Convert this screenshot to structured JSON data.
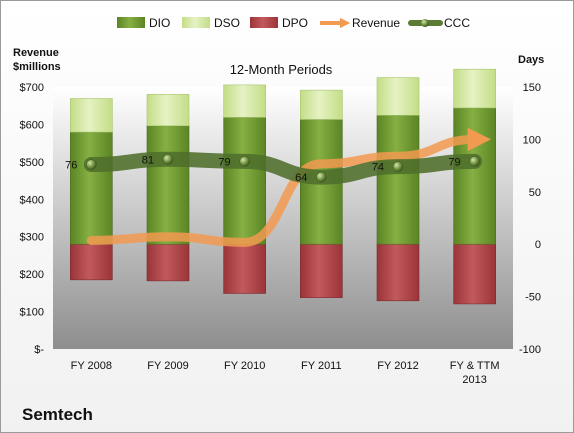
{
  "company": "Semtech",
  "chart_data": {
    "type": "bar",
    "title": "12-Month Periods",
    "left_axis_title_line1": "Revenue",
    "left_axis_title_line2": "$millions",
    "right_axis_title": "Days",
    "categories": [
      [
        "FY 2008"
      ],
      [
        "FY 2009"
      ],
      [
        "FY 2010"
      ],
      [
        "FY 2011"
      ],
      [
        "FY 2012"
      ],
      [
        "FY & TTM",
        "2013"
      ]
    ],
    "left_ticks": [
      "$-",
      "$100",
      "$200",
      "$300",
      "$400",
      "$500",
      "$600",
      "$700"
    ],
    "left_ylim": [
      0,
      700
    ],
    "right_ticks": [
      "-100",
      "-50",
      "0",
      "50",
      "100",
      "150"
    ],
    "right_ylim": [
      -100,
      150
    ],
    "grid": false,
    "legend_position": "top",
    "series": [
      {
        "name": "DIO",
        "axis": "days",
        "kind": "stacked-bar",
        "color": "#6f9a2e",
        "values": [
          107,
          113,
          121,
          119,
          123,
          130
        ]
      },
      {
        "name": "DSO",
        "axis": "days",
        "kind": "stacked-bar",
        "color": "#d6eaa4",
        "values": [
          32,
          30,
          31,
          28,
          36,
          37
        ]
      },
      {
        "name": "DPO",
        "axis": "days",
        "kind": "negative-bar",
        "color": "#b3474a",
        "values": [
          -34,
          -35,
          -47,
          -51,
          -54,
          -57
        ]
      },
      {
        "name": "Revenue",
        "axis": "revenue",
        "kind": "line",
        "color": "#f29a50",
        "values": [
          290,
          300,
          285,
          495,
          515,
          560
        ]
      },
      {
        "name": "CCC",
        "axis": "days",
        "kind": "line",
        "color": "#4e6e2b",
        "values": [
          76,
          81,
          79,
          64,
          74,
          79
        ]
      }
    ],
    "data_labels_series": "CCC",
    "data_labels": [
      "76",
      "81",
      "79",
      "64",
      "74",
      "79"
    ]
  }
}
